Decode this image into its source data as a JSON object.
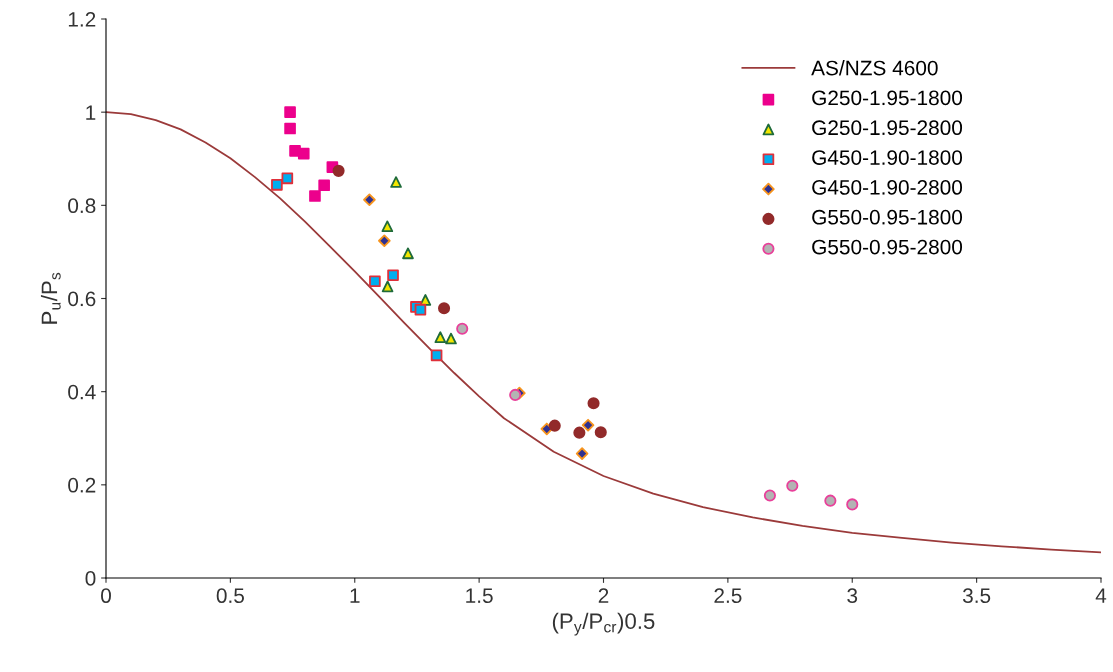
{
  "chart_data": {
    "type": "scatter",
    "xlabel": "(P$_{y}$/P$_{cr}$)0.5",
    "ylabel": "P$_{u}$/P$_{s}$",
    "xlim": [
      0,
      4
    ],
    "ylim": [
      0,
      1.2
    ],
    "xticks": [
      0,
      0.5,
      1,
      1.5,
      2,
      2.5,
      3,
      3.5,
      4
    ],
    "yticks": [
      0,
      0.2,
      0.4,
      0.6,
      0.8,
      1,
      1.2
    ],
    "grid": false,
    "legend": "top right",
    "series": [
      {
        "name": "AS/NZS 4600",
        "type": "line",
        "color": "#9b3a3a",
        "marker": "none",
        "x": [
          0,
          0.1,
          0.2,
          0.3,
          0.4,
          0.5,
          0.6,
          0.7,
          0.8,
          0.9,
          1.0,
          1.1,
          1.2,
          1.3,
          1.4,
          1.5,
          1.6,
          1.8,
          2.0,
          2.2,
          2.4,
          2.6,
          2.8,
          3.0,
          3.2,
          3.4,
          3.6,
          3.8,
          4.0
        ],
        "values": [
          1,
          0.996,
          0.983,
          0.963,
          0.935,
          0.901,
          0.86,
          0.815,
          0.765,
          0.712,
          0.658,
          0.603,
          0.547,
          0.493,
          0.44,
          0.39,
          0.343,
          0.271,
          0.219,
          0.181,
          0.152,
          0.13,
          0.112,
          0.097,
          0.086,
          0.076,
          0.068,
          0.061,
          0.055
        ]
      },
      {
        "name": "G250-1.95-1800",
        "color": "#ec008c",
        "marker": "square",
        "x": [
          0.74,
          0.74,
          0.76,
          0.795,
          0.91,
          0.877,
          0.84
        ],
        "values": [
          1.0,
          0.965,
          0.917,
          0.911,
          0.882,
          0.843,
          0.82
        ]
      },
      {
        "name": "G250-1.95-2800",
        "color": "#f2e600",
        "marker": "triangle",
        "x": [
          1.166,
          1.131,
          1.214,
          1.132,
          1.284,
          1.344,
          1.387
        ],
        "values": [
          0.85,
          0.755,
          0.697,
          0.626,
          0.597,
          0.517,
          0.514
        ]
      },
      {
        "name": "G450-1.90-1800",
        "color": "#00aeef",
        "marker": "square",
        "x": [
          0.687,
          0.729,
          1.081,
          1.154,
          1.246,
          1.264,
          1.329
        ],
        "values": [
          0.844,
          0.858,
          0.637,
          0.65,
          0.582,
          0.576,
          0.478
        ]
      },
      {
        "name": "G450-1.90-2800",
        "color": "#2e3192",
        "marker": "diamond",
        "x": [
          1.059,
          1.119,
          1.662,
          1.772,
          1.938,
          1.914
        ],
        "values": [
          0.812,
          0.724,
          0.397,
          0.32,
          0.328,
          0.267
        ]
      },
      {
        "name": "G550-0.95-1800",
        "color": "#922a2a",
        "marker": "circle",
        "x": [
          0.935,
          1.359,
          1.804,
          1.96,
          1.903,
          1.989
        ],
        "values": [
          0.874,
          0.579,
          0.327,
          0.375,
          0.312,
          0.313
        ]
      },
      {
        "name": "G550-0.95-2800",
        "color": "#b3b3b3",
        "marker": "circle",
        "x": [
          1.432,
          1.645,
          2.669,
          2.759,
          2.912,
          3.0
        ],
        "values": [
          0.535,
          0.393,
          0.177,
          0.198,
          0.166,
          0.158
        ]
      }
    ]
  }
}
